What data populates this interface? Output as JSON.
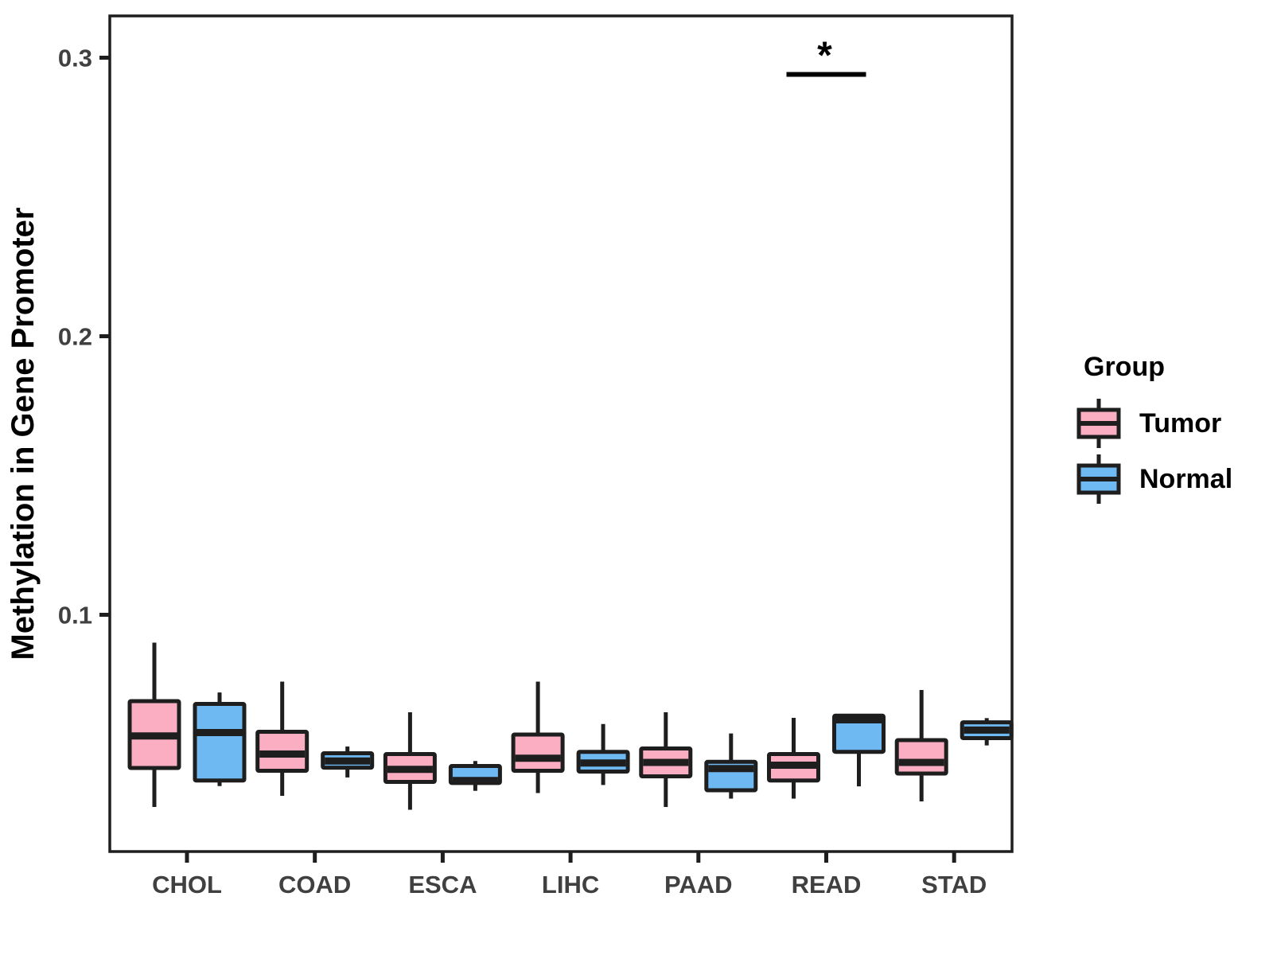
{
  "chart_data": {
    "type": "grouped_boxplot",
    "ylabel": "Methylation in Gene Promoter",
    "legend_title": "Group",
    "legend_position": "right",
    "categories": [
      "CHOL",
      "COAD",
      "ESCA",
      "LIHC",
      "PAAD",
      "READ",
      "STAD"
    ],
    "yticks": [
      0.1,
      0.2,
      0.3
    ],
    "ytick_labels": [
      "0.1",
      "0.2",
      "0.3"
    ],
    "ylim": [
      0.015,
      0.315
    ],
    "grid": false,
    "series": [
      {
        "name": "Tumor",
        "color": "#FBAEC2",
        "boxes": [
          {
            "category": "CHOL",
            "min": 0.031,
            "q1": 0.045,
            "median": 0.0565,
            "q3": 0.069,
            "max": 0.09
          },
          {
            "category": "COAD",
            "min": 0.035,
            "q1": 0.044,
            "median": 0.05,
            "q3": 0.058,
            "max": 0.076
          },
          {
            "category": "ESCA",
            "min": 0.03,
            "q1": 0.04,
            "median": 0.0445,
            "q3": 0.05,
            "max": 0.065
          },
          {
            "category": "LIHC",
            "min": 0.036,
            "q1": 0.044,
            "median": 0.0485,
            "q3": 0.057,
            "max": 0.076
          },
          {
            "category": "PAAD",
            "min": 0.031,
            "q1": 0.042,
            "median": 0.047,
            "q3": 0.052,
            "max": 0.065
          },
          {
            "category": "READ",
            "min": 0.034,
            "q1": 0.0405,
            "median": 0.046,
            "q3": 0.05,
            "max": 0.063
          },
          {
            "category": "STAD",
            "min": 0.033,
            "q1": 0.043,
            "median": 0.047,
            "q3": 0.055,
            "max": 0.073
          }
        ]
      },
      {
        "name": "Normal",
        "color": "#6FB9F2",
        "boxes": [
          {
            "category": "CHOL",
            "min": 0.0385,
            "q1": 0.0405,
            "median": 0.0577,
            "q3": 0.068,
            "max": 0.0721
          },
          {
            "category": "COAD",
            "min": 0.0416,
            "q1": 0.0451,
            "median": 0.0475,
            "q3": 0.0503,
            "max": 0.0527
          },
          {
            "category": "ESCA",
            "min": 0.0368,
            "q1": 0.0396,
            "median": 0.0405,
            "q3": 0.0457,
            "max": 0.0475
          },
          {
            "category": "LIHC",
            "min": 0.0389,
            "q1": 0.0437,
            "median": 0.0468,
            "q3": 0.0508,
            "max": 0.0608
          },
          {
            "category": "PAAD",
            "min": 0.034,
            "q1": 0.037,
            "median": 0.0448,
            "q3": 0.0472,
            "max": 0.0574
          },
          {
            "category": "READ",
            "min": 0.0384,
            "q1": 0.0508,
            "median": 0.0623,
            "q3": 0.0638,
            "max": 0.0638
          },
          {
            "category": "STAD",
            "min": 0.0531,
            "q1": 0.0557,
            "median": 0.0586,
            "q3": 0.0614,
            "max": 0.0629
          }
        ]
      }
    ],
    "annotations": [
      {
        "symbol": "*",
        "category": "READ",
        "y": 0.294
      }
    ]
  },
  "style": {
    "stroke_color": "#1E1E1E",
    "tick_label_color": "#404040",
    "axis_title_color": "#000000"
  }
}
